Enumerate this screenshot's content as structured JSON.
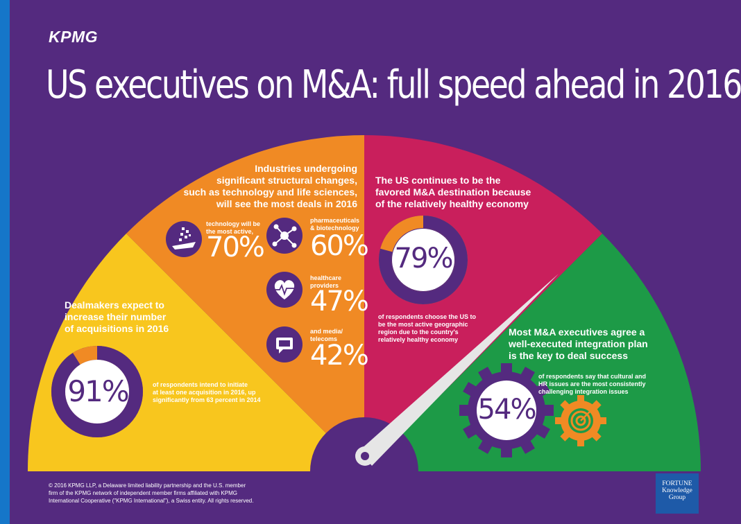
{
  "brand": {
    "logo": "KPMG"
  },
  "title": "US executives on M&A: full speed ahead in 2016",
  "colors": {
    "purple": "#542a7f",
    "yellow": "#f8c61e",
    "orange": "#f08a24",
    "magenta": "#c91f5c",
    "green": "#1d9a47",
    "blue_edge": "#1576c9"
  },
  "dealmakers": {
    "heading": [
      "Dealmakers expect to",
      "increase their number",
      "of acquisitions in 2016"
    ],
    "percent": "91%",
    "value": 91,
    "desc": [
      "of respondents intend to initiate",
      "at least one acquisition in 2016, up",
      "significantly from 63 percent in 2014"
    ]
  },
  "industries": {
    "heading": [
      "Industries undergoing",
      "significant structural changes,",
      "such as technology and life sciences,",
      "will see the most deals in 2016"
    ],
    "items": [
      {
        "label": [
          "technology will be",
          "the most active,"
        ],
        "percent": "70%",
        "icon": "technology-icon"
      },
      {
        "label": [
          "pharmaceuticals",
          "& biotechnology"
        ],
        "percent": "60%",
        "icon": "molecule-icon"
      },
      {
        "label": [
          "healthcare",
          "providers"
        ],
        "percent": "47%",
        "icon": "heart-pulse-icon"
      },
      {
        "label": [
          "and media/",
          "telecoms"
        ],
        "percent": "42%",
        "icon": "media-chat-icon"
      }
    ]
  },
  "us_destination": {
    "heading": [
      "The US continues to be the",
      "favored M&A destination because",
      "of the relatively healthy economy"
    ],
    "percent": "79%",
    "value": 79,
    "desc": [
      "of respondents choose the US to",
      "be the most active geographic",
      "region due to the country's",
      "relatively healthy economy"
    ]
  },
  "integration": {
    "heading": [
      "Most M&A executives agree a",
      "well-executed integration plan",
      "is the key to deal success"
    ],
    "percent": "54%",
    "desc": [
      "of respondents say that cultural and",
      "HR issues are the most consistently",
      "challenging integration issues"
    ]
  },
  "footer": [
    "© 2016 KPMG LLP, a Delaware limited liability partnership and the U.S. member",
    "firm of the KPMG network of independent member firms affiliated with KPMG",
    "International Cooperative (\"KPMG International\"), a Swiss entity. All rights reserved."
  ],
  "fortune": [
    "FORTUNE",
    "Knowledge",
    "Group"
  ]
}
